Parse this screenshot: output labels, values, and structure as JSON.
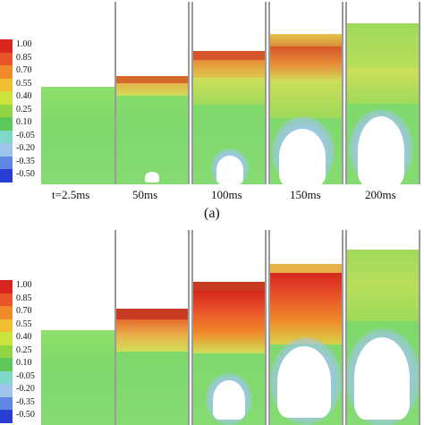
{
  "colorbar": {
    "ticks": [
      "1.00",
      "0.85",
      "0.70",
      "0.55",
      "0.40",
      "0.25",
      "0.10",
      "-0.05",
      "-0.20",
      "-0.35",
      "-0.50"
    ],
    "colors": [
      "#d7261e",
      "#e9552a",
      "#f08a2a",
      "#f2c02e",
      "#cde23a",
      "#8fd444",
      "#5cc85a",
      "#7fd8c8",
      "#9ec6ec",
      "#5f86e4",
      "#2a3fd1"
    ]
  },
  "panels": [
    {
      "label": "(a)",
      "times": [
        "t=2.5ms",
        "50ms",
        "100ms",
        "150ms",
        "200ms"
      ]
    },
    {
      "label": "",
      "times": []
    }
  ]
}
